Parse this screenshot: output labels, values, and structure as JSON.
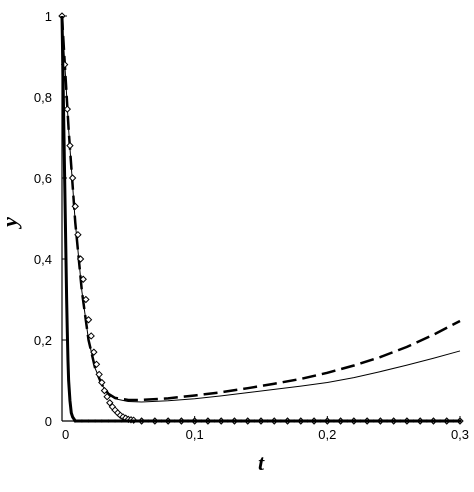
{
  "chart_data": {
    "type": "line",
    "xlabel": "t",
    "ylabel": "y",
    "xlim": [
      0,
      0.3
    ],
    "ylim": [
      0,
      1
    ],
    "grid": false,
    "x_ticks": [
      0,
      0.1,
      0.2,
      0.3
    ],
    "x_tick_labels": [
      "0",
      "0,1",
      "0,2",
      "0,3"
    ],
    "y_ticks": [
      0,
      0.2,
      0.4,
      0.6,
      0.8,
      1
    ],
    "y_tick_labels": [
      "0",
      "0,2",
      "0,4",
      "0,6",
      "0,8",
      "1"
    ],
    "series": [
      {
        "style": "solid-thin",
        "color": "#000000",
        "x": [
          0,
          0.005,
          0.01,
          0.015,
          0.02,
          0.025,
          0.03,
          0.035,
          0.04,
          0.05,
          0.06,
          0.08,
          0.1,
          0.12,
          0.14,
          0.16,
          0.18,
          0.2,
          0.22,
          0.24,
          0.26,
          0.28,
          0.3
        ],
        "y": [
          1,
          0.72,
          0.49,
          0.32,
          0.2,
          0.13,
          0.09,
          0.065,
          0.055,
          0.048,
          0.047,
          0.05,
          0.055,
          0.062,
          0.07,
          0.078,
          0.086,
          0.095,
          0.107,
          0.122,
          0.138,
          0.155,
          0.173
        ]
      },
      {
        "style": "dashed",
        "color": "#000000",
        "x": [
          0,
          0.005,
          0.01,
          0.015,
          0.02,
          0.025,
          0.03,
          0.035,
          0.04,
          0.05,
          0.06,
          0.08,
          0.1,
          0.12,
          0.14,
          0.16,
          0.18,
          0.2,
          0.22,
          0.24,
          0.26,
          0.28,
          0.3
        ],
        "y": [
          1,
          0.72,
          0.49,
          0.32,
          0.2,
          0.13,
          0.09,
          0.067,
          0.057,
          0.052,
          0.052,
          0.056,
          0.063,
          0.071,
          0.081,
          0.092,
          0.104,
          0.119,
          0.137,
          0.158,
          0.183,
          0.213,
          0.247
        ]
      },
      {
        "style": "diamond-markers",
        "color": "#000000",
        "x": [
          0,
          0.002,
          0.004,
          0.006,
          0.008,
          0.01,
          0.012,
          0.014,
          0.016,
          0.018,
          0.02,
          0.022,
          0.024,
          0.026,
          0.028,
          0.03,
          0.032,
          0.034,
          0.036,
          0.038,
          0.04,
          0.042,
          0.044,
          0.046,
          0.048,
          0.05,
          0.052,
          0.054,
          0.06,
          0.07,
          0.08,
          0.09,
          0.1,
          0.11,
          0.12,
          0.13,
          0.14,
          0.15,
          0.16,
          0.17,
          0.18,
          0.19,
          0.2,
          0.21,
          0.22,
          0.23,
          0.24,
          0.25,
          0.26,
          0.27,
          0.28,
          0.29,
          0.3
        ],
        "y": [
          1,
          0.88,
          0.77,
          0.68,
          0.6,
          0.53,
          0.46,
          0.4,
          0.35,
          0.3,
          0.25,
          0.21,
          0.17,
          0.14,
          0.115,
          0.095,
          0.075,
          0.06,
          0.045,
          0.035,
          0.027,
          0.02,
          0.014,
          0.01,
          0.007,
          0.004,
          0.003,
          0.002,
          0,
          0,
          0,
          0,
          0,
          0,
          0,
          0,
          0,
          0,
          0,
          0,
          0,
          0,
          0,
          0,
          0,
          0,
          0,
          0,
          0,
          0,
          0,
          0,
          0
        ]
      },
      {
        "style": "solid-thick",
        "color": "#000000",
        "x": [
          0,
          0.0005,
          0.001,
          0.0015,
          0.002,
          0.0025,
          0.003,
          0.0035,
          0.004,
          0.0045,
          0.005,
          0.006,
          0.007,
          0.008,
          0.01,
          0.02,
          0.05,
          0.1,
          0.15,
          0.2,
          0.25,
          0.3
        ],
        "y": [
          1,
          0.9,
          0.8,
          0.7,
          0.6,
          0.5,
          0.4,
          0.3,
          0.22,
          0.15,
          0.1,
          0.05,
          0.02,
          0.01,
          0,
          0,
          0,
          0,
          0,
          0,
          0,
          0
        ]
      }
    ]
  }
}
